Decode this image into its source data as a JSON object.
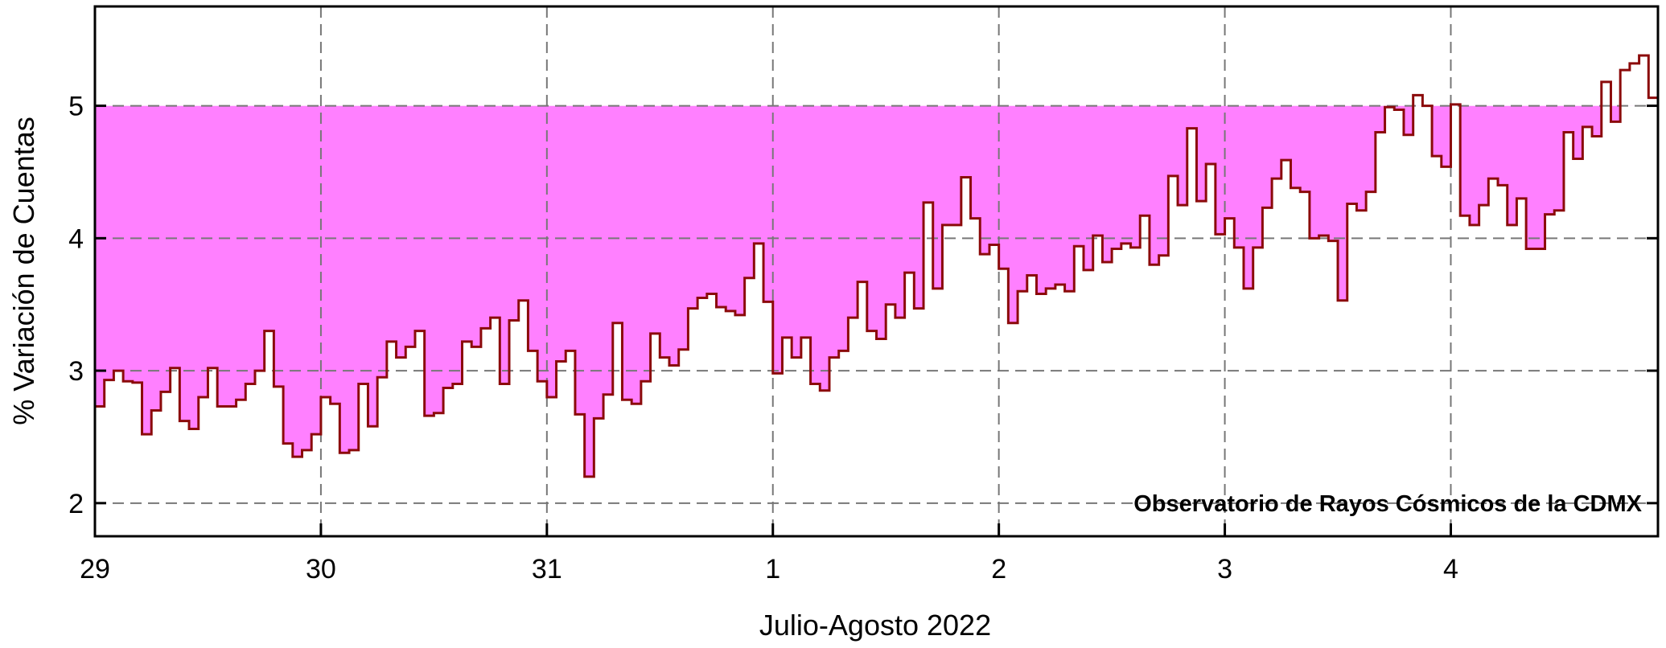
{
  "chart_data": {
    "type": "step",
    "x_label": "Julio-Agosto 2022",
    "y_label": "% Variación de Cuentas",
    "annotation": "Observatorio de Rayos Cósmicos de la CDMX",
    "color": "#8b0a0a",
    "fill_color": "#ff80ff",
    "fill_to": 5,
    "grid": true,
    "xlim": [
      0,
      166
    ],
    "ylim": [
      1.75,
      5.75
    ],
    "xticks": [
      {
        "value": 0,
        "label": "29"
      },
      {
        "value": 24,
        "label": "30"
      },
      {
        "value": 48,
        "label": "31"
      },
      {
        "value": 72,
        "label": "1"
      },
      {
        "value": 96,
        "label": "2"
      },
      {
        "value": 120,
        "label": "3"
      },
      {
        "value": 144,
        "label": "4"
      }
    ],
    "yticks": [
      2,
      3,
      4,
      5
    ],
    "x": [
      0,
      1,
      2,
      3,
      4,
      5,
      6,
      7,
      8,
      9,
      10,
      11,
      12,
      13,
      14,
      15,
      16,
      17,
      18,
      19,
      20,
      21,
      22,
      23,
      24,
      25,
      26,
      27,
      28,
      29,
      30,
      31,
      32,
      33,
      34,
      35,
      36,
      37,
      38,
      39,
      40,
      41,
      42,
      43,
      44,
      45,
      46,
      47,
      48,
      49,
      50,
      51,
      52,
      53,
      54,
      55,
      56,
      57,
      58,
      59,
      60,
      61,
      62,
      63,
      64,
      65,
      66,
      67,
      68,
      69,
      70,
      71,
      72,
      73,
      74,
      75,
      76,
      77,
      78,
      79,
      80,
      81,
      82,
      83,
      84,
      85,
      86,
      87,
      88,
      89,
      90,
      91,
      92,
      93,
      94,
      95,
      96,
      97,
      98,
      99,
      100,
      101,
      102,
      103,
      104,
      105,
      106,
      107,
      108,
      109,
      110,
      111,
      112,
      113,
      114,
      115,
      116,
      117,
      118,
      119,
      120,
      121,
      122,
      123,
      124,
      125,
      126,
      127,
      128,
      129,
      130,
      131,
      132,
      133,
      134,
      135,
      136,
      137,
      138,
      139,
      140,
      141,
      142,
      143,
      144,
      145,
      146,
      147,
      148,
      149,
      150,
      151,
      152,
      153,
      154,
      155,
      156,
      157,
      158,
      159,
      160,
      161,
      162,
      163,
      164,
      165
    ],
    "values": [
      2.73,
      2.93,
      3.0,
      2.92,
      2.91,
      2.52,
      2.7,
      2.84,
      3.02,
      2.62,
      2.56,
      2.8,
      3.02,
      2.73,
      2.73,
      2.78,
      2.9,
      3.0,
      3.3,
      2.88,
      2.45,
      2.35,
      2.4,
      2.52,
      2.8,
      2.75,
      2.38,
      2.4,
      2.9,
      2.58,
      2.95,
      3.22,
      3.1,
      3.18,
      3.3,
      2.66,
      2.68,
      2.87,
      2.9,
      3.22,
      3.18,
      3.32,
      3.4,
      2.9,
      3.38,
      3.53,
      3.15,
      2.92,
      2.8,
      3.07,
      3.15,
      2.67,
      2.2,
      2.64,
      2.82,
      3.36,
      2.78,
      2.75,
      2.92,
      3.28,
      3.1,
      3.04,
      3.16,
      3.47,
      3.55,
      3.58,
      3.48,
      3.45,
      3.42,
      3.7,
      3.96,
      3.52,
      2.98,
      3.25,
      3.1,
      3.25,
      2.9,
      2.85,
      3.1,
      3.15,
      3.4,
      3.67,
      3.3,
      3.24,
      3.5,
      3.4,
      3.74,
      3.47,
      4.27,
      3.62,
      4.1,
      4.1,
      4.46,
      4.15,
      3.88,
      3.95,
      3.77,
      3.36,
      3.6,
      3.72,
      3.58,
      3.62,
      3.65,
      3.6,
      3.94,
      3.76,
      4.02,
      3.82,
      3.92,
      3.96,
      3.93,
      4.17,
      3.8,
      3.87,
      4.47,
      4.25,
      4.83,
      4.28,
      4.56,
      4.03,
      4.15,
      3.93,
      3.62,
      3.93,
      4.23,
      4.45,
      4.59,
      4.38,
      4.35,
      4.0,
      4.02,
      3.98,
      3.53,
      4.26,
      4.21,
      4.35,
      4.8,
      4.99,
      4.97,
      4.78,
      5.08,
      5.0,
      4.62,
      4.54,
      5.01,
      4.17,
      4.1,
      4.25,
      4.45,
      4.4,
      4.1,
      4.3,
      3.92,
      3.92,
      4.18,
      4.21,
      4.8,
      4.6,
      4.84,
      4.77,
      5.18,
      4.88,
      5.27,
      5.32,
      5.38,
      5.06
    ]
  }
}
